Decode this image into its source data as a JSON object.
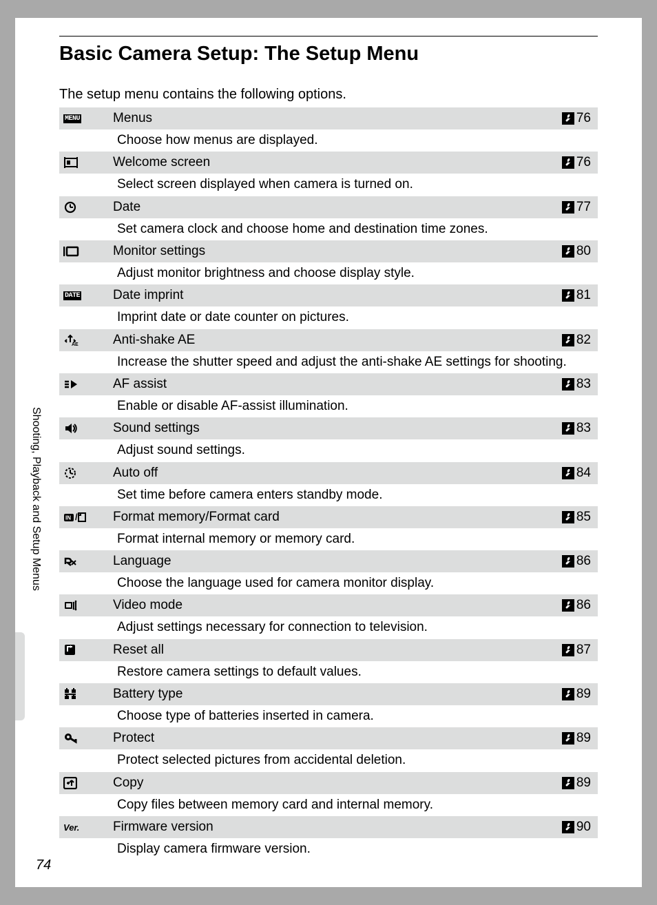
{
  "title": "Basic Camera Setup: The Setup Menu",
  "intro": "The setup menu contains the following options.",
  "side_label": "Shooting, Playback and Setup Menus",
  "page_number": "74",
  "ref_icon_fill": "#000000",
  "head_bg": "#dcdddd",
  "items": [
    {
      "icon": "menu",
      "title": "Menus",
      "page": "76",
      "desc": "Choose how menus are displayed."
    },
    {
      "icon": "welcome",
      "title": "Welcome screen",
      "page": "76",
      "desc": "Select screen displayed when camera is turned on."
    },
    {
      "icon": "clock",
      "title": "Date",
      "page": "77",
      "desc": "Set camera clock and choose home and destination time zones."
    },
    {
      "icon": "monitor",
      "title": "Monitor settings",
      "page": "80",
      "desc": "Adjust monitor brightness and choose display style."
    },
    {
      "icon": "date",
      "title": "Date imprint",
      "page": "81",
      "desc": "Imprint date or date counter on pictures."
    },
    {
      "icon": "antishake",
      "title": "Anti-shake AE",
      "page": "82",
      "desc": "Increase the shutter speed and adjust the anti-shake AE settings for shooting."
    },
    {
      "icon": "afassist",
      "title": "AF assist",
      "page": "83",
      "desc": "Enable or disable AF-assist illumination."
    },
    {
      "icon": "sound",
      "title": "Sound settings",
      "page": "83",
      "desc": "Adjust sound settings."
    },
    {
      "icon": "autooff",
      "title": "Auto off",
      "page": "84",
      "desc": "Set time before camera enters standby mode."
    },
    {
      "icon": "format",
      "title": "Format memory/Format card",
      "page": "85",
      "desc": "Format internal memory or memory card."
    },
    {
      "icon": "language",
      "title": "Language",
      "page": "86",
      "desc": "Choose the language used for camera monitor display."
    },
    {
      "icon": "video",
      "title": "Video mode",
      "page": "86",
      "desc": "Adjust settings necessary for connection to television."
    },
    {
      "icon": "reset",
      "title": "Reset all",
      "page": "87",
      "desc": "Restore camera settings to default values."
    },
    {
      "icon": "battery",
      "title": "Battery type",
      "page": "89",
      "desc": "Choose type of batteries inserted in camera."
    },
    {
      "icon": "protect",
      "title": "Protect",
      "page": "89",
      "desc": "Protect selected pictures from accidental deletion."
    },
    {
      "icon": "copy",
      "title": "Copy",
      "page": "89",
      "desc": "Copy files between memory card and internal memory."
    },
    {
      "icon": "version",
      "title": "Firmware version",
      "page": "90",
      "desc": "Display camera firmware version."
    }
  ]
}
